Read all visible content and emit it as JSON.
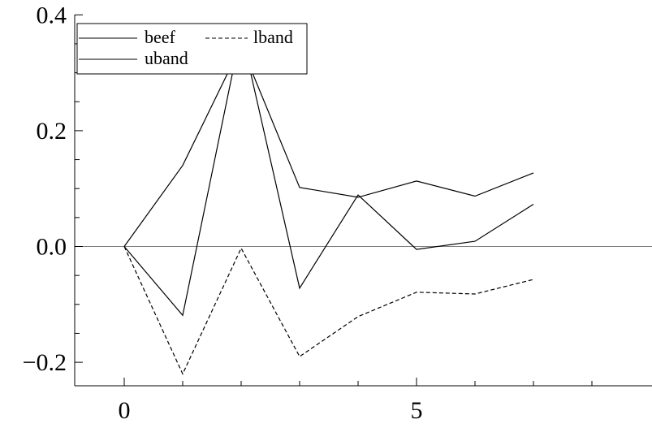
{
  "chart_data": {
    "type": "line",
    "title": "",
    "xlabel": "",
    "ylabel": "",
    "xlim": [
      -0.85,
      9.0
    ],
    "ylim": [
      -0.242,
      0.4
    ],
    "x": [
      0,
      1,
      2,
      3,
      4,
      5,
      6,
      7
    ],
    "x_ticks": [
      0,
      5
    ],
    "x_tick_labels": [
      "0",
      "5"
    ],
    "x_minor_ticks": [
      0,
      1,
      2,
      3,
      4,
      5,
      6,
      7,
      8
    ],
    "y_ticks": [
      0.4,
      0.2,
      0.0,
      -0.2
    ],
    "y_tick_labels": [
      "0.4",
      "0.2",
      "0.0",
      "−0.2"
    ],
    "y_minor_ticks": [
      -0.2,
      -0.15,
      -0.1,
      -0.05,
      0.0,
      0.05,
      0.1,
      0.15,
      0.2,
      0.25,
      0.3,
      0.35,
      0.4
    ],
    "zero_line": true,
    "grid": false,
    "legend_position": "top-left",
    "series": [
      {
        "name": "beef",
        "style": "solid",
        "color": "#000000",
        "values": [
          0.0,
          0.14,
          0.347,
          0.102,
          0.085,
          0.113,
          0.087,
          0.127
        ]
      },
      {
        "name": "lband",
        "style": "dashed",
        "color": "#000000",
        "values": [
          0.0,
          -0.22,
          -0.003,
          -0.19,
          -0.121,
          -0.079,
          -0.082,
          -0.057
        ]
      },
      {
        "name": "uband",
        "style": "solid",
        "color": "#000000",
        "values": [
          0.0,
          -0.119,
          0.372,
          -0.072,
          0.089,
          -0.005,
          0.009,
          0.073
        ]
      }
    ]
  }
}
